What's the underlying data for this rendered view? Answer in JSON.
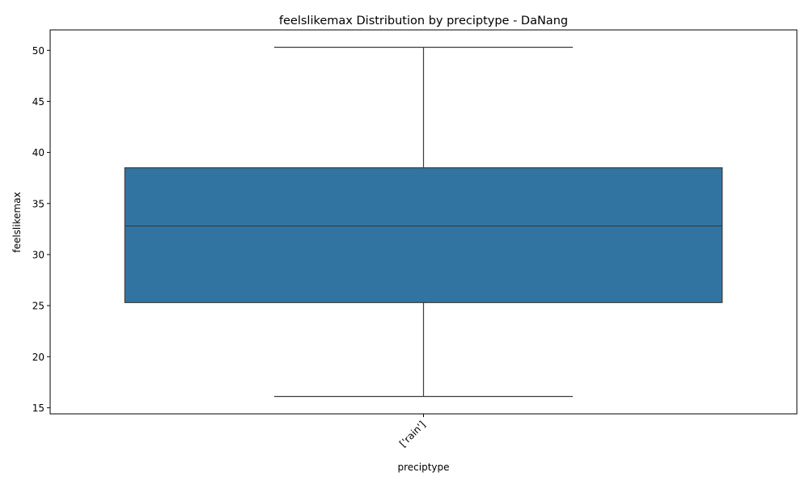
{
  "chart_data": {
    "type": "box",
    "title": "feelslikemax Distribution by preciptype - DaNang",
    "xlabel": "preciptype",
    "ylabel": "feelslikemax",
    "categories": [
      "['rain']"
    ],
    "boxes": [
      {
        "category": "['rain']",
        "whisker_low": 16.1,
        "q1": 25.3,
        "median": 32.8,
        "q3": 38.5,
        "whisker_high": 50.3
      }
    ],
    "ylim": [
      14.4,
      52.0
    ],
    "yticks": [
      15,
      20,
      25,
      30,
      35,
      40,
      45,
      50
    ],
    "grid": false,
    "box_color": "#3274a1",
    "line_color": "#3d3d3d"
  }
}
